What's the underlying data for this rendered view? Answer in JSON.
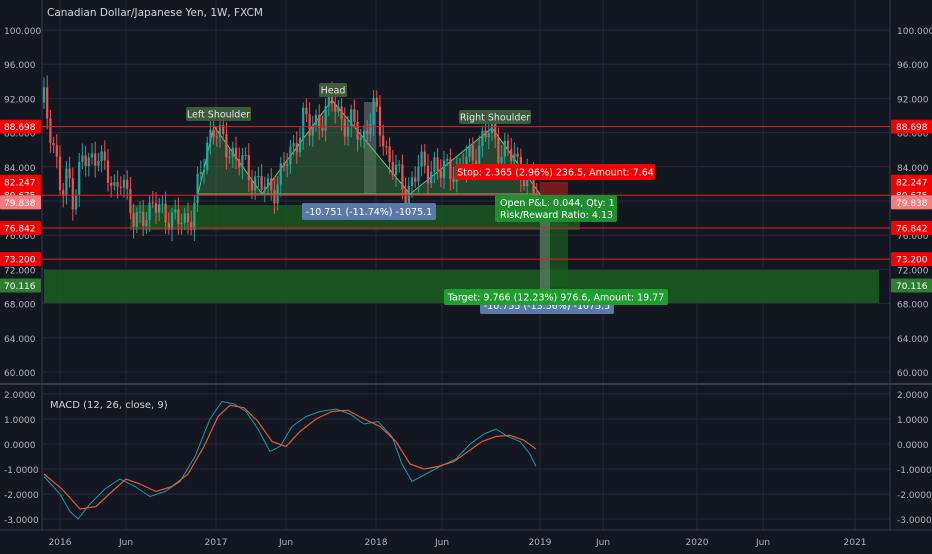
{
  "header": {
    "title": "Canadian Dollar/Japanese Yen, 1W, FXCM"
  },
  "colors": {
    "bg": "#131722",
    "grid": "#242a38",
    "text": "#b2b5be",
    "up": "#26a69a",
    "down": "#ef5350",
    "red_line": "#e51c23",
    "red_label": "#f50000",
    "green_zone": "#1b5e20",
    "gray_label": "#5d606b",
    "light_red_label": "#f77c80",
    "pattern_fill": "#3f7f3f",
    "pattern_label": "#3d5a3a",
    "blue_label": "#5b79a8",
    "macd_line": "#1f9aa8",
    "signal_line": "#e25b37"
  },
  "price_axis": {
    "ticks": [
      "100.000",
      "96.000",
      "92.000",
      "88.000",
      "84.000",
      "80.000",
      "76.000",
      "72.000",
      "68.000",
      "64.000",
      "60.000"
    ],
    "levels": [
      {
        "label": "88.698",
        "value": 88.698,
        "style": "red"
      },
      {
        "label": "82.247",
        "value": 82.247,
        "style": "red"
      },
      {
        "label": "80.675",
        "value": 80.675,
        "style": "red"
      },
      {
        "label": "79.882",
        "value": 79.882,
        "style": "gray"
      },
      {
        "label": "79.838",
        "value": 79.838,
        "style": "lightred"
      },
      {
        "label": "76.842",
        "value": 76.842,
        "style": "red"
      },
      {
        "label": "73.200",
        "value": 73.2,
        "style": "red"
      },
      {
        "label": "70.116",
        "value": 70.116,
        "style": "green"
      }
    ]
  },
  "macd_axis": {
    "ticks": [
      "2.0000",
      "1.0000",
      "0.0000",
      "-1.0000",
      "-2.0000",
      "-3.0000"
    ]
  },
  "time_axis": {
    "ticks": [
      "2016",
      "Jun",
      "2017",
      "Jun",
      "2018",
      "Jun",
      "2019",
      "Jun",
      "2020",
      "Jun",
      "2021"
    ]
  },
  "annotations": {
    "left_shoulder": "Left Shoulder",
    "head": "Head",
    "right_shoulder": "Right Shoulder",
    "measure": "-10.751 (-11.74%) -1075.1",
    "measure_hidden": "-10.755 (-13.56%) -1075.5",
    "stop": "Stop: 2.365 (2.96%) 236.5, Amount: 7.64",
    "open_pl": "Open P&L: 0.044, Qty: 1",
    "risk_reward": "Risk/Reward Ratio: 4.13",
    "target": "Target: 9.766 (12.23%) 976.6, Amount: 19.77"
  },
  "macd": {
    "title": "MACD (12, 26, close, 9)"
  },
  "chart_data": {
    "type": "candlestick",
    "title": "Canadian Dollar/Japanese Yen, 1W, FXCM",
    "price_range": [
      57.5,
      102
    ],
    "key_points": {
      "x": [
        "2015-12",
        "2016-06",
        "2016-12",
        "2017-03",
        "2017-07",
        "2017-12",
        "2018-03",
        "2018-09",
        "2018-12"
      ],
      "y": [
        92,
        75.5,
        88.5,
        83,
        91.5,
        88.5,
        80.8,
        88.3,
        79.8
      ]
    },
    "macd": {
      "x_range": [
        "2016-01",
        "2019-01"
      ],
      "y_range": [
        -3.3,
        2.2
      ]
    }
  }
}
